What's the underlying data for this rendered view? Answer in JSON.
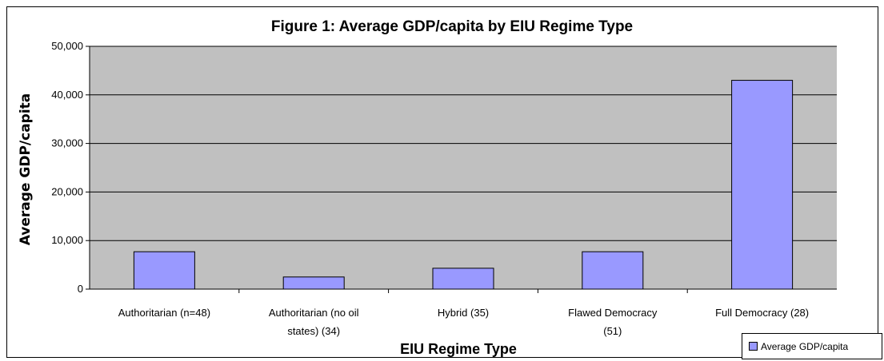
{
  "chart_data": {
    "type": "bar",
    "title": "Figure 1: Average GDP/capita by EIU Regime Type",
    "xlabel": "EIU Regime Type",
    "ylabel": "Average GDP/capita",
    "categories": [
      [
        "Authoritarian (n=48)"
      ],
      [
        "Authoritarian (no oil",
        "states) (34)"
      ],
      [
        "Hybrid (35)"
      ],
      [
        "Flawed Democracy",
        "(51)"
      ],
      [
        "Full Democracy (28)"
      ]
    ],
    "series": [
      {
        "name": "Average GDP/capita",
        "values": [
          7700,
          2500,
          4300,
          7700,
          43000
        ]
      }
    ],
    "ylim": [
      0,
      50000
    ],
    "yticks": [
      0,
      10000,
      20000,
      30000,
      40000,
      50000
    ],
    "ytick_labels": [
      "0",
      "10,000",
      "20,000",
      "30,000",
      "40,000",
      "50,000"
    ],
    "grid": true,
    "legend_position": "bottom-right",
    "colors": {
      "bar": "#9999ff",
      "plot_background": "#c0c0c0",
      "gridline": "#000000"
    }
  }
}
